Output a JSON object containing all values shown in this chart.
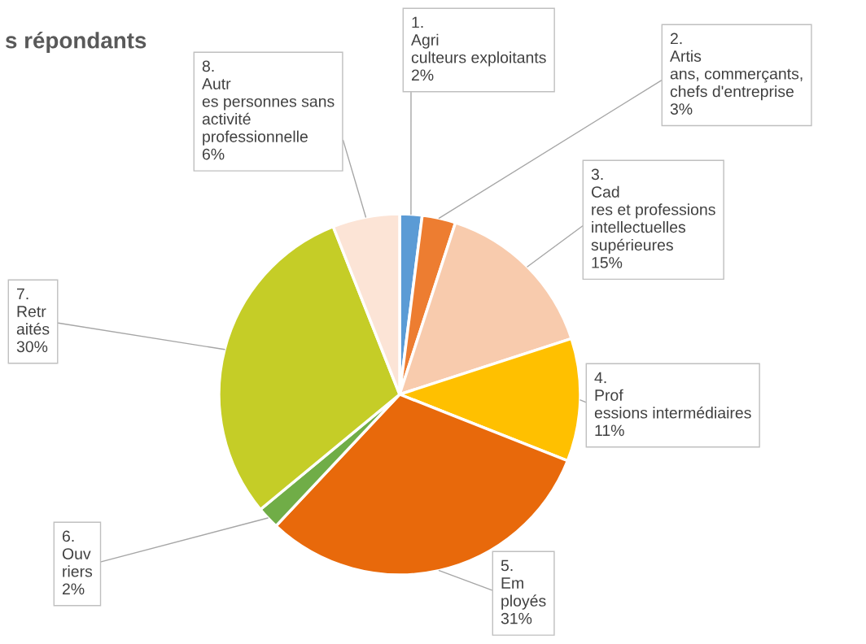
{
  "chart_data": {
    "type": "pie",
    "title": "s répondants",
    "categories": [
      "1.\nAgri\nculteurs exploitants",
      "2.\nArtis\nans, commerçants,\nchefs d'entreprise",
      "3.\nCad\nres et professions\nintellectuelles\nsupérieures",
      "4.\nProf\nessions intermédiaires",
      "5.\nEm\nployés",
      "6.\nOuv\nriers",
      "7.\nRetr\naités",
      "8.\nAutr\nes personnes sans\nactivité\nprofessionnelle"
    ],
    "values": [
      2,
      3,
      15,
      11,
      31,
      2,
      30,
      6
    ],
    "value_labels": [
      "2%",
      "3%",
      "15%",
      "11%",
      "31%",
      "2%",
      "30%",
      "6%"
    ],
    "colors": [
      "#5b9bd5",
      "#ed7d31",
      "#f8cbad",
      "#ffc000",
      "#e8690b",
      "#70ad47",
      "#c5cd27",
      "#fce4d6"
    ]
  }
}
